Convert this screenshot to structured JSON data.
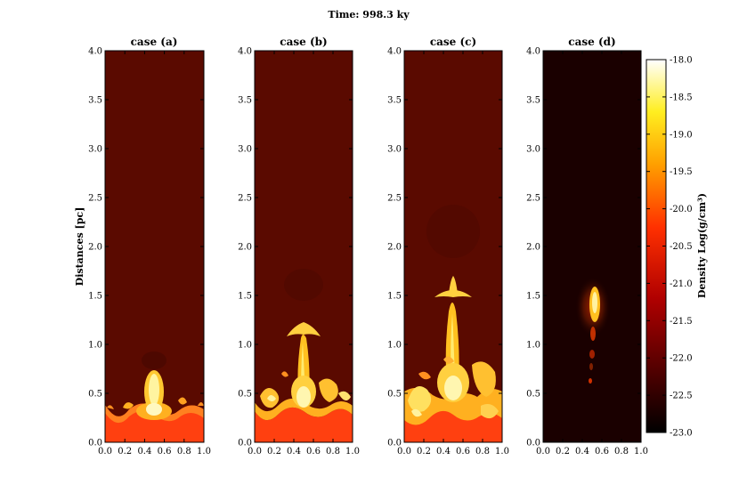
{
  "figure": {
    "title": "Time: 998.3 ky"
  },
  "chart_data": {
    "type": "heatmap",
    "title": "Time: 998.3 ky",
    "ylabel": "Distances [pc]",
    "xlim": [
      0.0,
      1.0
    ],
    "ylim": [
      0.0,
      4.0
    ],
    "x_ticks": [
      "0.0",
      "0.2",
      "0.4",
      "0.6",
      "0.8",
      "1.0"
    ],
    "y_ticks": [
      "0.0",
      "0.5",
      "1.0",
      "1.5",
      "2.0",
      "2.5",
      "3.0",
      "3.5",
      "4.0"
    ],
    "panels": [
      {
        "title": "case (a)",
        "background_log_density": -21.6,
        "disk_top_pc": 0.35,
        "plume_top_pc": 0.72,
        "plume_cap_width": 0.0
      },
      {
        "title": "case (b)",
        "background_log_density": -21.6,
        "disk_top_pc": 0.38,
        "plume_top_pc": 1.22,
        "plume_cap_width": 0.22
      },
      {
        "title": "case (c)",
        "background_log_density": -21.6,
        "disk_top_pc": 0.45,
        "plume_top_pc": 1.7,
        "plume_cap_width": 0.26
      },
      {
        "title": "case (d)",
        "background_log_density": -23.0,
        "disk_top_pc": 0.0,
        "plume_top_pc": 1.62,
        "plume_cap_width": 0.0
      }
    ],
    "colorbar": {
      "label": "Density Log(g/cm³)",
      "colormap": "hot",
      "range": [
        -23.0,
        -18.0
      ],
      "ticks": [
        "-18.0",
        "-18.5",
        "-19.0",
        "-19.5",
        "-20.0",
        "-20.5",
        "-21.0",
        "-21.5",
        "-22.0",
        "-22.5",
        "-23.0"
      ]
    }
  }
}
